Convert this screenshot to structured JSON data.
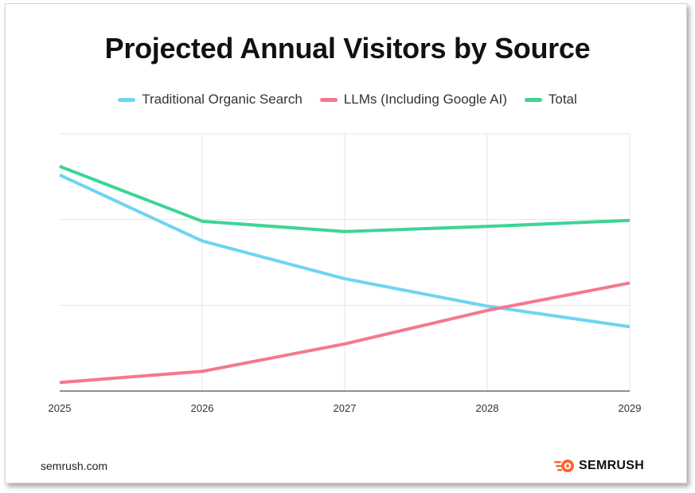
{
  "chart_data": {
    "type": "line",
    "title": "Projected Annual Visitors by Source",
    "x": [
      "2025",
      "2026",
      "2027",
      "2028",
      "2029"
    ],
    "ylim": [
      0,
      3
    ],
    "grid": true,
    "legend_position": "top-center",
    "series": [
      {
        "name": "Traditional Organic Search",
        "color": "#6fd4f2",
        "values": [
          2.52,
          1.75,
          1.31,
          0.99,
          0.75
        ]
      },
      {
        "name": "LLMs (Including Google AI)",
        "color": "#f5788e",
        "values": [
          0.1,
          0.23,
          0.55,
          0.94,
          1.26
        ]
      },
      {
        "name": "Total",
        "color": "#3ed496",
        "values": [
          2.62,
          1.98,
          1.86,
          1.92,
          1.99
        ]
      }
    ]
  },
  "footer": {
    "source": "semrush.com",
    "brand": "SEMRUSH",
    "brand_color": "#ff642d"
  }
}
